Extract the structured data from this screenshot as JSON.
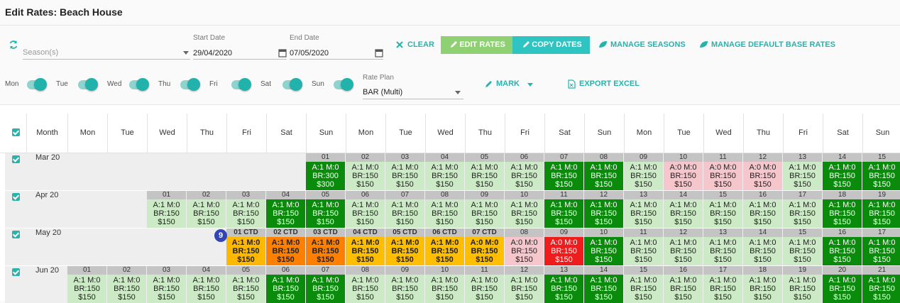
{
  "header": {
    "title": "Edit Rates: Beach House"
  },
  "toolbar": {
    "season_placeholder": "Season(s)",
    "start_date_label": "Start Date",
    "start_date": "29/04/2020",
    "end_date_label": "End Date",
    "end_date": "07/05/2020",
    "buttons": [
      "CLEAR",
      "EDIT RATES",
      "COPY DATES",
      "MANAGE SEASONS",
      "MANAGE DEFAULT BASE RATES"
    ],
    "days": [
      "Mon",
      "Tue",
      "Wed",
      "Thu",
      "Fri",
      "Sat",
      "Sun"
    ],
    "rate_plan_label": "Rate Plan",
    "rate_plan": "BAR (Multi)",
    "mark": "MARK",
    "export": "EXPORT EXCEL"
  },
  "grid": {
    "month_header": "Month",
    "columns": [
      "Mon",
      "Tue",
      "Wed",
      "Thu",
      "Fri",
      "Sat",
      "Sun",
      "Mon",
      "Tue",
      "Wed",
      "Thu",
      "Fri",
      "Sat",
      "Sun",
      "Mon",
      "Tue",
      "Wed",
      "Thu",
      "Fri",
      "Sat",
      "Sun"
    ],
    "rows": [
      {
        "month": "Mar 20",
        "cells": [
          null,
          null,
          null,
          null,
          null,
          null,
          {
            "day": "01",
            "avail": "A:1 M:0",
            "base_rate": "BR:300",
            "price": "$300",
            "color": "#0b8b0b"
          },
          {
            "day": "02",
            "avail": "A:1 M:0",
            "base_rate": "BR:150",
            "price": "$150",
            "color": "#cdeac6"
          },
          {
            "day": "03",
            "avail": "A:1 M:0",
            "base_rate": "BR:150",
            "price": "$150",
            "color": "#cdeac6"
          },
          {
            "day": "04",
            "avail": "A:1 M:0",
            "base_rate": "BR:150",
            "price": "$150",
            "color": "#cdeac6"
          },
          {
            "day": "05",
            "avail": "A:1 M:0",
            "base_rate": "BR:150",
            "price": "$150",
            "color": "#cdeac6"
          },
          {
            "day": "06",
            "avail": "A:1 M:0",
            "base_rate": "BR:150",
            "price": "$150",
            "color": "#cdeac6"
          },
          {
            "day": "07",
            "avail": "A:1 M:0",
            "base_rate": "BR:150",
            "price": "$150",
            "color": "#0b8b0b"
          },
          {
            "day": "08",
            "avail": "A:1 M:0",
            "base_rate": "BR:150",
            "price": "$150",
            "color": "#0b8b0b"
          },
          {
            "day": "09",
            "avail": "A:1 M:0",
            "base_rate": "BR:150",
            "price": "$150",
            "color": "#cdeac6"
          },
          {
            "day": "10",
            "avail": "A:0 M:0",
            "base_rate": "BR:150",
            "price": "$150",
            "color": "#f5c6cb"
          },
          {
            "day": "11",
            "avail": "A:0 M:0",
            "base_rate": "BR:150",
            "price": "$150",
            "color": "#f5c6cb"
          },
          {
            "day": "12",
            "avail": "A:0 M:0",
            "base_rate": "BR:150",
            "price": "$150",
            "color": "#f5c6cb"
          },
          {
            "day": "13",
            "avail": "A:1 M:0",
            "base_rate": "BR:150",
            "price": "$150",
            "color": "#cdeac6"
          },
          {
            "day": "14",
            "avail": "A:1 M:0",
            "base_rate": "BR:150",
            "price": "$150",
            "color": "#0b8b0b"
          },
          {
            "day": "15",
            "avail": "A:1 M:0",
            "base_rate": "BR:150",
            "price": "$150",
            "color": "#0b8b0b"
          }
        ]
      },
      {
        "month": "Apr 20",
        "cells": [
          null,
          null,
          {
            "day": "01",
            "avail": "A:1 M:0",
            "base_rate": "BR:150",
            "price": "$150",
            "color": "#cdeac6"
          },
          {
            "day": "02",
            "avail": "A:1 M:0",
            "base_rate": "BR:150",
            "price": "$150",
            "color": "#cdeac6"
          },
          {
            "day": "03",
            "avail": "A:1 M:0",
            "base_rate": "BR:150",
            "price": "$150",
            "color": "#cdeac6"
          },
          {
            "day": "04",
            "avail": "A:1 M:0",
            "base_rate": "BR:150",
            "price": "$150",
            "color": "#0b8b0b"
          },
          {
            "day": "05",
            "avail": "A:1 M:0",
            "base_rate": "BR:150",
            "price": "$150",
            "color": "#0b8b0b"
          },
          {
            "day": "06",
            "avail": "A:1 M:0",
            "base_rate": "BR:150",
            "price": "$150",
            "color": "#cdeac6"
          },
          {
            "day": "07",
            "avail": "A:1 M:0",
            "base_rate": "BR:150",
            "price": "$150",
            "color": "#cdeac6"
          },
          {
            "day": "08",
            "avail": "A:1 M:0",
            "base_rate": "BR:150",
            "price": "$150",
            "color": "#cdeac6"
          },
          {
            "day": "09",
            "avail": "A:1 M:0",
            "base_rate": "BR:150",
            "price": "$150",
            "color": "#cdeac6"
          },
          {
            "day": "10",
            "avail": "A:1 M:0",
            "base_rate": "BR:150",
            "price": "$150",
            "color": "#cdeac6"
          },
          {
            "day": "11",
            "avail": "A:1 M:0",
            "base_rate": "BR:150",
            "price": "$150",
            "color": "#0b8b0b"
          },
          {
            "day": "12",
            "avail": "A:1 M:0",
            "base_rate": "BR:150",
            "price": "$150",
            "color": "#0b8b0b"
          },
          {
            "day": "13",
            "avail": "A:1 M:0",
            "base_rate": "BR:150",
            "price": "$150",
            "color": "#cdeac6"
          },
          {
            "day": "14",
            "avail": "A:1 M:0",
            "base_rate": "BR:150",
            "price": "$150",
            "color": "#cdeac6"
          },
          {
            "day": "15",
            "avail": "A:1 M:0",
            "base_rate": "BR:150",
            "price": "$150",
            "color": "#cdeac6"
          },
          {
            "day": "16",
            "avail": "A:1 M:0",
            "base_rate": "BR:150",
            "price": "$150",
            "color": "#cdeac6"
          },
          {
            "day": "17",
            "avail": "A:1 M:0",
            "base_rate": "BR:150",
            "price": "$150",
            "color": "#cdeac6"
          },
          {
            "day": "18",
            "avail": "A:1 M:0",
            "base_rate": "BR:150",
            "price": "$150",
            "color": "#0b8b0b"
          },
          {
            "day": "19",
            "avail": "A:1 M:0",
            "base_rate": "BR:150",
            "price": "$150",
            "color": "#0b8b0b"
          }
        ]
      },
      {
        "month": "May 20",
        "badge": "9",
        "cells": [
          null,
          null,
          null,
          null,
          {
            "day": "01 CTD",
            "avail": "A:1 M:0",
            "base_rate": "BR:150",
            "price": "$150",
            "color": "#ffb800",
            "bold": true
          },
          {
            "day": "02 CTD",
            "avail": "A:1 M:0",
            "base_rate": "BR:150",
            "price": "$150",
            "color": "#ff8000",
            "bold": true
          },
          {
            "day": "03 CTD",
            "avail": "A:1 M:0",
            "base_rate": "BR:150",
            "price": "$150",
            "color": "#ff8000",
            "bold": true
          },
          {
            "day": "04 CTD",
            "avail": "A:1 M:0",
            "base_rate": "BR:150",
            "price": "$150",
            "color": "#ffbf00",
            "bold": true
          },
          {
            "day": "05 CTD",
            "avail": "A:1 M:0",
            "base_rate": "BR:150",
            "price": "$150",
            "color": "#ffbf00",
            "bold": true
          },
          {
            "day": "06 CTD",
            "avail": "A:1 M:0",
            "base_rate": "BR:150",
            "price": "$150",
            "color": "#ffbf00",
            "bold": true
          },
          {
            "day": "07 CTD",
            "avail": "A:0 M:0",
            "base_rate": "BR:150",
            "price": "$150",
            "color": "#ffbf00",
            "bold": true
          },
          {
            "day": "08",
            "avail": "A:0 M:0",
            "base_rate": "BR:150",
            "price": "$150",
            "color": "#f5c6cb"
          },
          {
            "day": "09",
            "avail": "A:0 M:0",
            "base_rate": "BR:150",
            "price": "$150",
            "color": "#ee1c1c"
          },
          {
            "day": "10",
            "avail": "A:1 M:0",
            "base_rate": "BR:150",
            "price": "$150",
            "color": "#0b8b0b"
          },
          {
            "day": "11",
            "avail": "A:1 M:0",
            "base_rate": "BR:150",
            "price": "$150",
            "color": "#cdeac6"
          },
          {
            "day": "12",
            "avail": "A:1 M:0",
            "base_rate": "BR:150",
            "price": "$150",
            "color": "#cdeac6"
          },
          {
            "day": "13",
            "avail": "A:1 M:0",
            "base_rate": "BR:150",
            "price": "$150",
            "color": "#cdeac6"
          },
          {
            "day": "14",
            "avail": "A:1 M:0",
            "base_rate": "BR:150",
            "price": "$150",
            "color": "#cdeac6"
          },
          {
            "day": "15",
            "avail": "A:1 M:0",
            "base_rate": "BR:150",
            "price": "$150",
            "color": "#cdeac6"
          },
          {
            "day": "16",
            "avail": "A:1 M:0",
            "base_rate": "BR:150",
            "price": "$150",
            "color": "#0b8b0b"
          },
          {
            "day": "17",
            "avail": "A:1 M:0",
            "base_rate": "BR:150",
            "price": "$150",
            "color": "#0b8b0b"
          }
        ]
      },
      {
        "month": "Jun 20",
        "cells": [
          {
            "day": "01",
            "avail": "A:1 M:0",
            "base_rate": "BR:150",
            "price": "$150",
            "color": "#cdeac6"
          },
          {
            "day": "02",
            "avail": "A:1 M:0",
            "base_rate": "BR:150",
            "price": "$150",
            "color": "#cdeac6"
          },
          {
            "day": "03",
            "avail": "A:1 M:0",
            "base_rate": "BR:150",
            "price": "$150",
            "color": "#cdeac6"
          },
          {
            "day": "04",
            "avail": "A:1 M:0",
            "base_rate": "BR:150",
            "price": "$150",
            "color": "#cdeac6"
          },
          {
            "day": "05",
            "avail": "A:1 M:0",
            "base_rate": "BR:150",
            "price": "$150",
            "color": "#cdeac6"
          },
          {
            "day": "06",
            "avail": "A:1 M:0",
            "base_rate": "BR:150",
            "price": "$150",
            "color": "#0b8b0b"
          },
          {
            "day": "07",
            "avail": "A:1 M:0",
            "base_rate": "BR:150",
            "price": "$150",
            "color": "#0b8b0b"
          },
          {
            "day": "08",
            "avail": "A:1 M:0",
            "base_rate": "BR:150",
            "price": "$150",
            "color": "#cdeac6"
          },
          {
            "day": "09",
            "avail": "A:1 M:0",
            "base_rate": "BR:150",
            "price": "$150",
            "color": "#cdeac6"
          },
          {
            "day": "10",
            "avail": "A:1 M:0",
            "base_rate": "BR:150",
            "price": "$150",
            "color": "#cdeac6"
          },
          {
            "day": "11",
            "avail": "A:1 M:0",
            "base_rate": "BR:150",
            "price": "$150",
            "color": "#cdeac6"
          },
          {
            "day": "12",
            "avail": "A:1 M:0",
            "base_rate": "BR:150",
            "price": "$150",
            "color": "#cdeac6"
          },
          {
            "day": "13",
            "avail": "A:1 M:0",
            "base_rate": "BR:150",
            "price": "$150",
            "color": "#0b8b0b"
          },
          {
            "day": "14",
            "avail": "A:1 M:0",
            "base_rate": "BR:150",
            "price": "$150",
            "color": "#0b8b0b"
          },
          {
            "day": "15",
            "avail": "A:1 M:0",
            "base_rate": "BR:150",
            "price": "$150",
            "color": "#cdeac6"
          },
          {
            "day": "16",
            "avail": "A:1 M:0",
            "base_rate": "BR:150",
            "price": "$150",
            "color": "#cdeac6"
          },
          {
            "day": "17",
            "avail": "A:1 M:0",
            "base_rate": "BR:150",
            "price": "$150",
            "color": "#cdeac6"
          },
          {
            "day": "18",
            "avail": "A:1 M:0",
            "base_rate": "BR:150",
            "price": "$150",
            "color": "#cdeac6"
          },
          {
            "day": "19",
            "avail": "A:1 M:0",
            "base_rate": "BR:150",
            "price": "$150",
            "color": "#cdeac6"
          },
          {
            "day": "20",
            "avail": "A:1 M:0",
            "base_rate": "BR:150",
            "price": "$150",
            "color": "#0b8b0b"
          },
          {
            "day": "21",
            "avail": "A:1 M:0",
            "base_rate": "BR:150",
            "price": "$150",
            "color": "#0b8b0b"
          }
        ]
      }
    ]
  }
}
